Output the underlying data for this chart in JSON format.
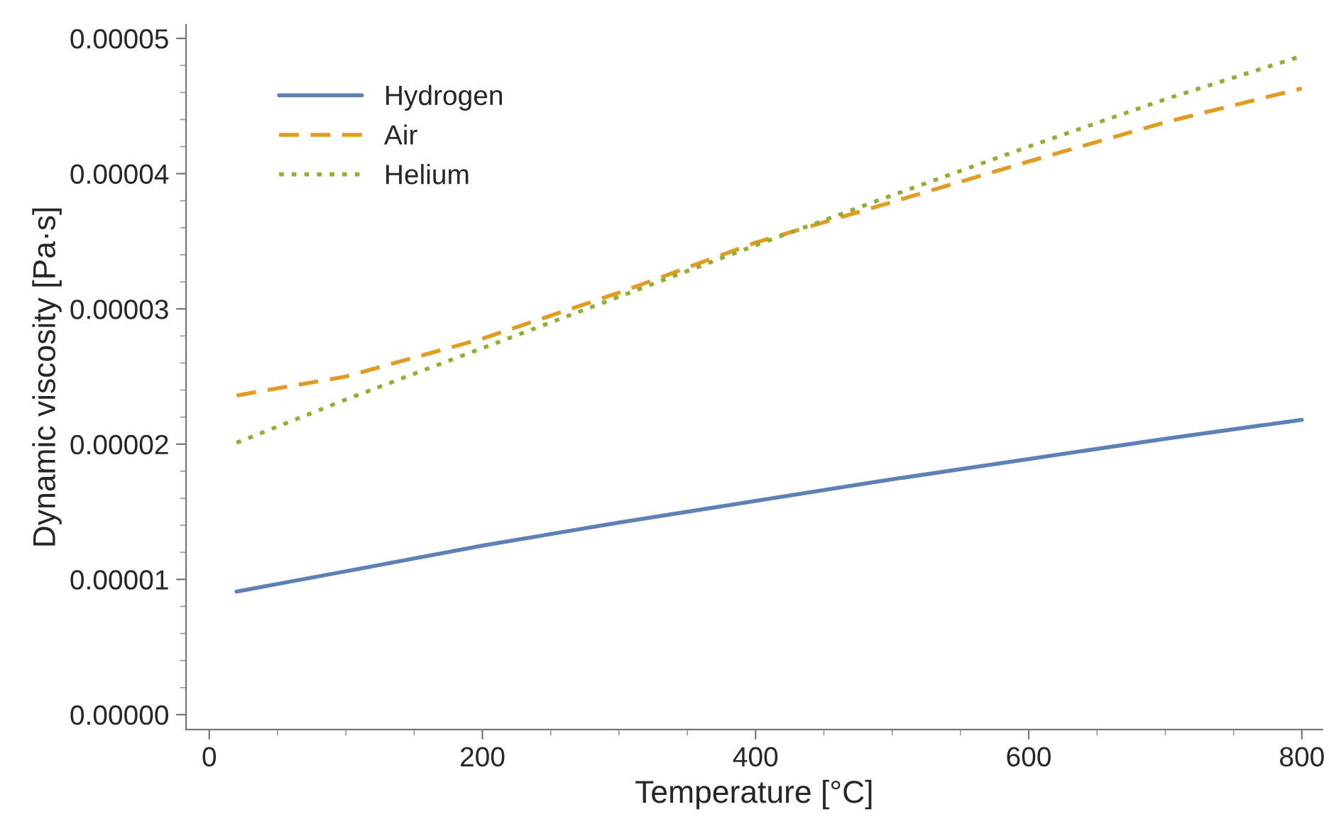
{
  "chart_data": {
    "type": "line",
    "xlabel": "Temperature [°C]",
    "ylabel": "Dynamic viscosity [Pa·s]",
    "x": [
      20,
      100,
      200,
      300,
      400,
      500,
      600,
      700,
      800
    ],
    "series": [
      {
        "name": "Hydrogen",
        "color": "#5e81b5",
        "line_style": "solid",
        "values": [
          9.1e-06,
          1.06e-05,
          1.25e-05,
          1.42e-05,
          1.58e-05,
          1.74e-05,
          1.89e-05,
          2.04e-05,
          2.18e-05
        ]
      },
      {
        "name": "Air",
        "color": "#e19c24",
        "line_style": "dashed",
        "values": [
          2.36e-05,
          2.5e-05,
          2.78e-05,
          3.12e-05,
          3.49e-05,
          3.79e-05,
          4.09e-05,
          4.38e-05,
          4.63e-05
        ]
      },
      {
        "name": "Helium",
        "color": "#8fb032",
        "line_style": "dotted",
        "values": [
          2.01e-05,
          2.33e-05,
          2.71e-05,
          3.09e-05,
          3.47e-05,
          3.84e-05,
          4.2e-05,
          4.55e-05,
          4.87e-05
        ]
      }
    ],
    "xlim": [
      -17,
      815
    ],
    "xticks": [
      0,
      200,
      400,
      600,
      800
    ],
    "ylim": [
      -1.1e-06,
      5.1e-05
    ],
    "yticks": [
      {
        "value": 0,
        "label": "0.00000"
      },
      {
        "value": 1e-05,
        "label": "0.00001"
      },
      {
        "value": 2e-05,
        "label": "0.00002"
      },
      {
        "value": 3e-05,
        "label": "0.00003"
      },
      {
        "value": 4e-05,
        "label": "0.00004"
      },
      {
        "value": 5e-05,
        "label": "0.00005"
      }
    ],
    "grid": false,
    "legend": "top left",
    "marker": "none"
  }
}
